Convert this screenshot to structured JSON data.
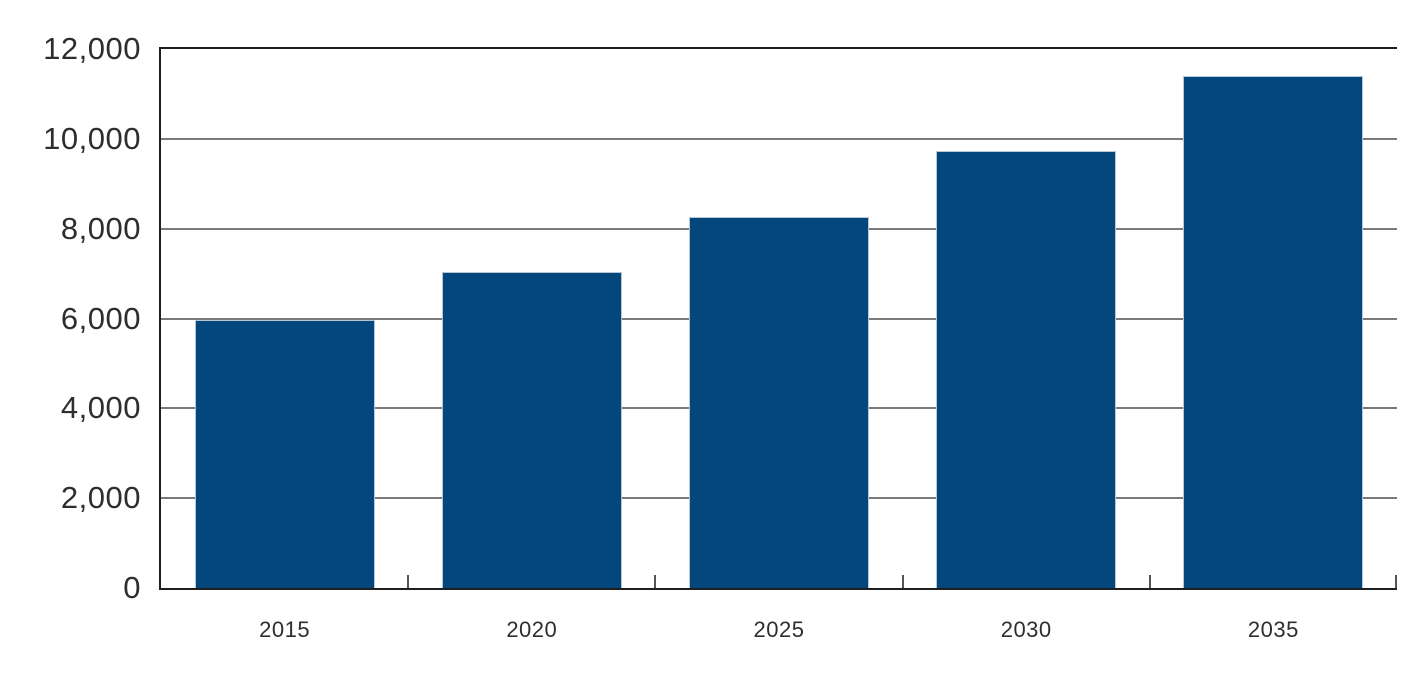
{
  "chart_data": {
    "type": "bar",
    "title": "",
    "xlabel": "",
    "ylabel": "",
    "categories": [
      "2015",
      "2020",
      "2025",
      "2030",
      "2035"
    ],
    "values": [
      5960,
      7030,
      8270,
      9730,
      11390
    ],
    "ylim": [
      0,
      12000
    ],
    "ytick_interval": 2000,
    "ytick_labels": [
      "0",
      "2,000",
      "4,000",
      "6,000",
      "8,000",
      "10,000",
      "12,000"
    ],
    "grid": "horizontal",
    "legend": "none",
    "colors": {
      "bar_fill": "#04477C",
      "bar_edge": "#B8C7D6",
      "gridline": "#7A7A7A",
      "axis_frame": "#1F1F1F",
      "tick": "#555555",
      "label_text": "#2E2E2E"
    }
  }
}
